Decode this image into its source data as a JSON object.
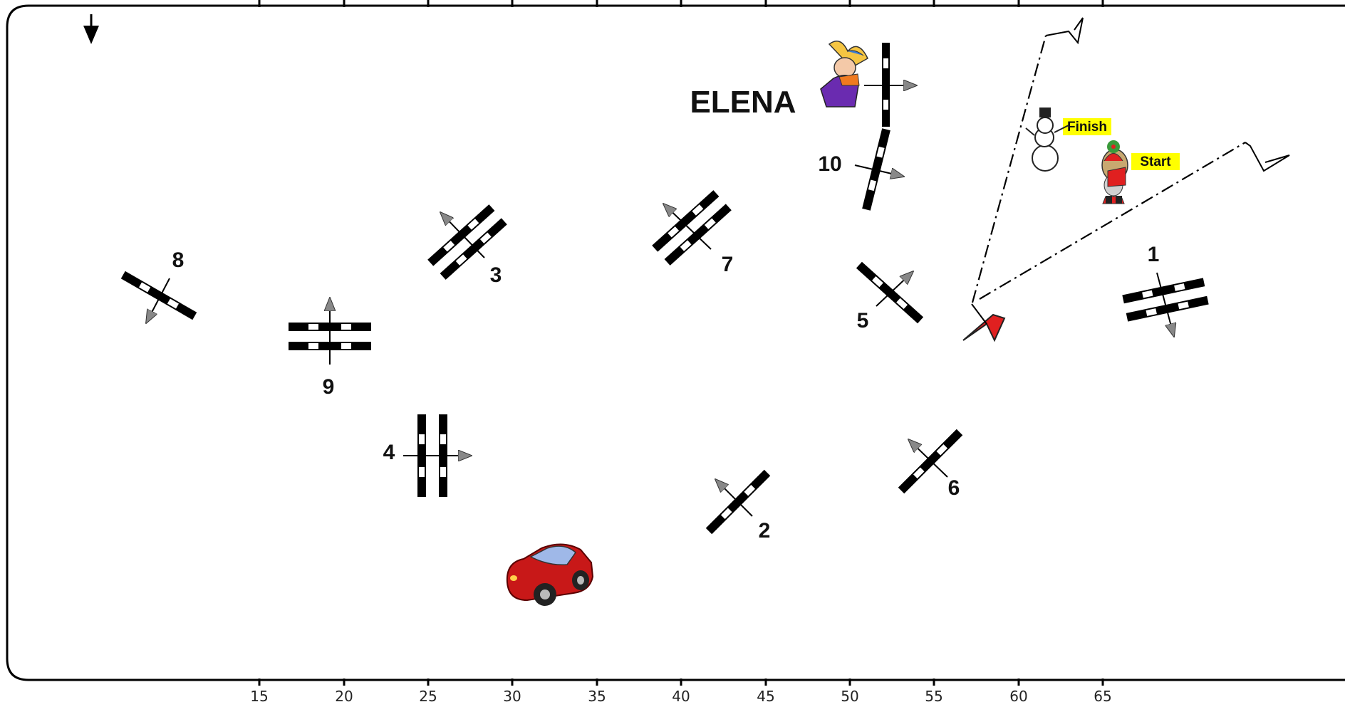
{
  "course": {
    "name": "ELENA",
    "start_label": "Start",
    "finish_label": "Finish",
    "tag_color": "#ffff00",
    "flag_color": "#e02020",
    "axis_ticks": [
      "15",
      "20",
      "25",
      "30",
      "35",
      "40",
      "45",
      "50",
      "55",
      "60",
      "65"
    ]
  },
  "obstacles": [
    {
      "label": "1",
      "kind": "oxer"
    },
    {
      "label": "2",
      "kind": "vertical"
    },
    {
      "label": "3",
      "kind": "oxer"
    },
    {
      "label": "4",
      "kind": "oxer"
    },
    {
      "label": "5",
      "kind": "vertical"
    },
    {
      "label": "6",
      "kind": "vertical"
    },
    {
      "label": "7",
      "kind": "oxer"
    },
    {
      "label": "8",
      "kind": "vertical"
    },
    {
      "label": "9",
      "kind": "oxer"
    },
    {
      "label": "10",
      "kind": "vertical"
    }
  ],
  "decorations": {
    "jester": "jester-clipart",
    "snowman": "snowman-clipart",
    "santa": "santa-clipart",
    "car": "red-car-clipart",
    "north_arrow": "arrow-down-icon"
  }
}
